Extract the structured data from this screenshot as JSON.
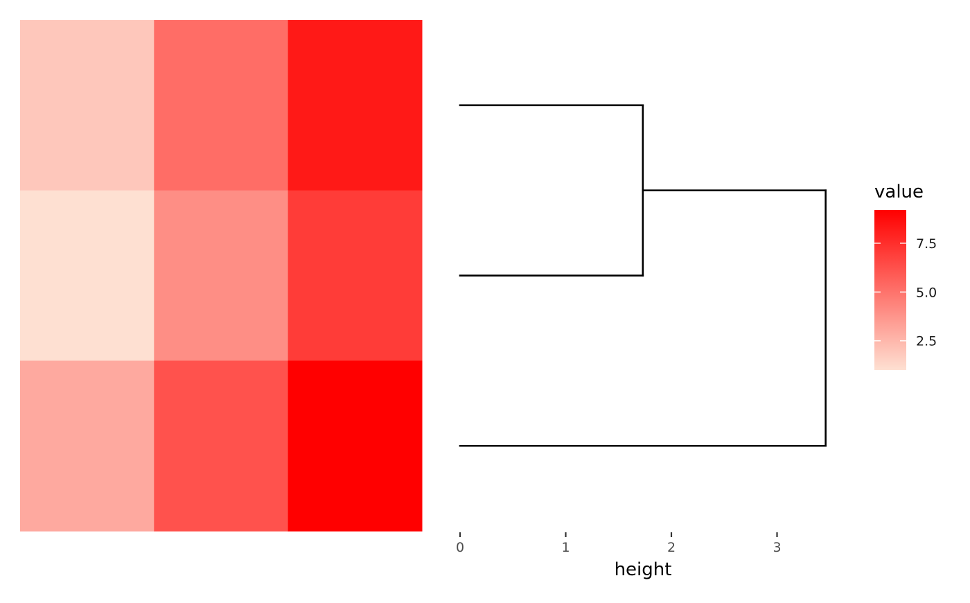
{
  "chart_data": [
    {
      "type": "heatmap",
      "title": "",
      "xlabel": "",
      "ylabel": "",
      "rows": 3,
      "cols": 3,
      "values": [
        [
          1.9,
          5.2,
          8.3
        ],
        [
          1.0,
          4.0,
          7.0
        ],
        [
          3.0,
          6.2,
          9.2
        ]
      ],
      "color_scale": {
        "low": "#fee0d2",
        "high": "#ff0000",
        "min": 1.0,
        "max": 9.2
      },
      "legend": {
        "title": "value",
        "ticks": [
          2.5,
          5.0,
          7.5
        ],
        "tick_labels": [
          "2.5",
          "5.0",
          "7.5"
        ],
        "placement": "right"
      }
    },
    {
      "type": "dendrogram",
      "xlabel": "height",
      "x_ticks": [
        0,
        1,
        2,
        3
      ],
      "x_tick_labels": [
        "0",
        "1",
        "2",
        "3"
      ],
      "xlim": [
        0,
        4.0
      ],
      "leaves": 3,
      "merges": [
        {
          "leaves": [
            0,
            1
          ],
          "height": 1.73
        },
        {
          "leaves": [
            2
          ],
          "joins": "0-1",
          "height": 3.46
        }
      ]
    }
  ]
}
